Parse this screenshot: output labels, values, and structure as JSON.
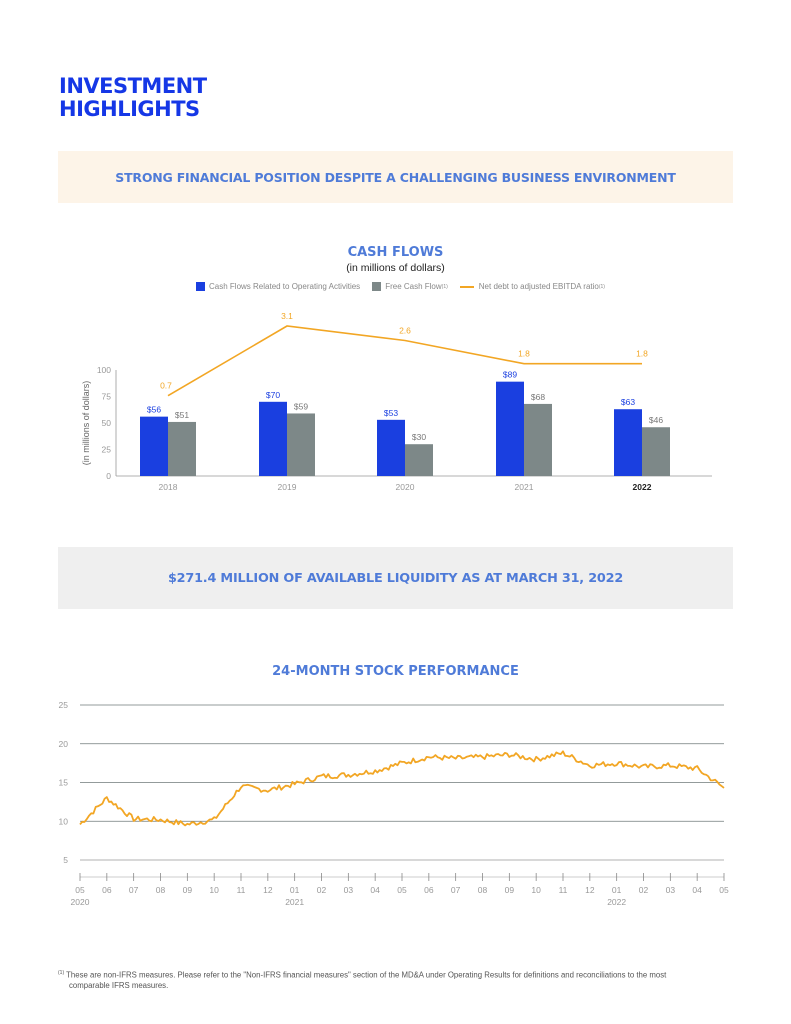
{
  "page": {
    "title_line1": "INVESTMENT",
    "title_line2": "HIGHLIGHTS",
    "banner1": "STRONG FINANCIAL POSITION DESPITE A CHALLENGING BUSINESS ENVIRONMENT",
    "banner2": "$271.4 MILLION OF AVAILABLE LIQUIDITY AS AT MARCH 31, 2022",
    "footnote_marker": "(1)",
    "footnote_line1": "These are non-IFRS measures. Please refer to the \"Non-IFRS financial measures\" section of the MD&A under Operating Results for definitions and reconciliations to the most",
    "footnote_line2": "comparable IFRS measures."
  },
  "chart_data": [
    {
      "type": "bar",
      "title": "CASH FLOWS",
      "subtitle": "(in millions of dollars)",
      "ylabel": "(in millions of dollars)",
      "ylim": [
        0,
        100
      ],
      "yticks": [
        "0",
        "25",
        "50",
        "75",
        "100"
      ],
      "categories": [
        "2018",
        "2019",
        "2020",
        "2021",
        "2022"
      ],
      "series": [
        {
          "name": "Cash Flows Related to Operating Activities",
          "color": "#1a3fe0",
          "values": [
            56,
            70,
            53,
            89,
            63
          ],
          "labels": [
            "$56",
            "$70",
            "$53",
            "$89",
            "$63"
          ]
        },
        {
          "name": "Free Cash Flow",
          "name_sup": "(1)",
          "color": "#7d8888",
          "values": [
            51,
            59,
            30,
            68,
            46
          ],
          "labels": [
            "$51",
            "$59",
            "$30",
            "$68",
            "$46"
          ]
        },
        {
          "name": "Net debt to adjusted EBITDA ratio",
          "name_sup": "(1)",
          "color": "#f2a624",
          "type": "line",
          "values": [
            0.7,
            3.1,
            2.6,
            1.8,
            1.8
          ],
          "labels": [
            "0.7",
            "3.1",
            "2.6",
            "1.8",
            "1.8"
          ]
        }
      ]
    },
    {
      "type": "line",
      "title": "24-MONTH STOCK PERFORMANCE",
      "ylim": [
        5,
        25
      ],
      "yticks": [
        "5",
        "10",
        "15",
        "20",
        "25"
      ],
      "x": [
        "05",
        "06",
        "07",
        "08",
        "09",
        "10",
        "11",
        "12",
        "01",
        "02",
        "03",
        "04",
        "05",
        "06",
        "07",
        "08",
        "09",
        "10",
        "11",
        "12",
        "01",
        "02",
        "03",
        "04",
        "05"
      ],
      "year_labels": [
        "2020",
        "2021",
        "2022"
      ],
      "color": "#f2a624",
      "series": [
        {
          "name": "Stock price",
          "values": [
            9.6,
            13.0,
            10.3,
            10.2,
            9.6,
            10.2,
            14.5,
            14.0,
            14.8,
            15.8,
            16.0,
            16.5,
            17.5,
            18.3,
            18.1,
            18.3,
            18.6,
            18.0,
            18.8,
            17.2,
            17.5,
            17.0,
            17.2,
            16.8,
            14.3
          ]
        }
      ]
    }
  ]
}
